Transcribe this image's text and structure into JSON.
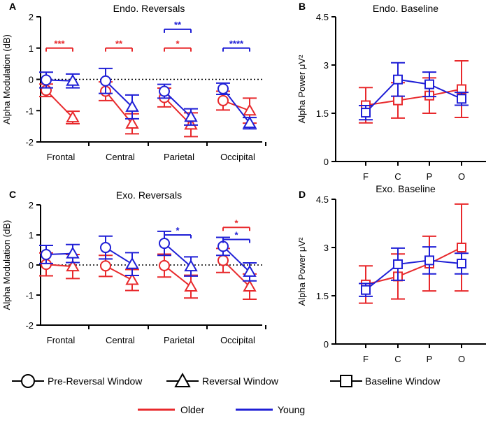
{
  "colors": {
    "older": "#e8292c",
    "young": "#1f1fd6"
  },
  "legend": {
    "markers": [
      {
        "label": "Pre-Reversal Window",
        "shape": "circle"
      },
      {
        "label": "Reversal Window",
        "shape": "triangle"
      },
      {
        "label": "Baseline Window",
        "shape": "square"
      }
    ],
    "groups": [
      {
        "label": "Older",
        "color": "older"
      },
      {
        "label": "Young",
        "color": "young"
      }
    ]
  },
  "chart_data": [
    {
      "id": "A",
      "type": "line",
      "title": "Endo. Reversals",
      "ylabel": "Alpha Modulation (dB)",
      "ylim": [
        -2,
        2
      ],
      "yticks": [
        "-2",
        "-1",
        "0",
        "1",
        "2"
      ],
      "categories": [
        "Frontal",
        "Central",
        "Parietal",
        "Occipital"
      ],
      "zero_line": true,
      "series": [
        {
          "name": "Older",
          "color": "older",
          "pre": [
            -0.35,
            -0.38,
            -0.58,
            -0.68
          ],
          "pre_err": [
            0.2,
            0.3,
            0.3,
            0.3
          ],
          "rev": [
            -1.22,
            -1.42,
            -1.45,
            -1.0
          ],
          "rev_err": [
            0.2,
            0.32,
            0.38,
            0.4
          ]
        },
        {
          "name": "Young",
          "color": "young",
          "pre": [
            -0.02,
            -0.05,
            -0.38,
            -0.3
          ],
          "pre_err": [
            0.25,
            0.4,
            0.22,
            0.18
          ],
          "rev": [
            -0.05,
            -0.88,
            -1.2,
            -1.4
          ],
          "rev_err": [
            0.22,
            0.38,
            0.26,
            0.18
          ]
        }
      ],
      "significance": [
        {
          "cat": 0,
          "group": "older",
          "label": "***",
          "level": 1.0
        },
        {
          "cat": 1,
          "group": "older",
          "label": "**",
          "level": 1.0
        },
        {
          "cat": 2,
          "group": "older",
          "label": "*",
          "level": 1.0
        },
        {
          "cat": 2,
          "group": "young",
          "label": "**",
          "level": 1.6
        },
        {
          "cat": 3,
          "group": "young",
          "label": "****",
          "level": 1.0
        }
      ]
    },
    {
      "id": "B",
      "type": "line",
      "title": "Endo. Baseline",
      "ylabel": "Alpha Power μV²",
      "ylim": [
        0,
        4.5
      ],
      "yticks": [
        "0",
        "1.5",
        "3",
        "4.5"
      ],
      "categories": [
        "F",
        "C",
        "P",
        "O"
      ],
      "series": [
        {
          "name": "Older",
          "color": "older",
          "values": [
            1.75,
            1.9,
            2.05,
            2.25
          ],
          "err": [
            0.55,
            0.55,
            0.55,
            0.88
          ]
        },
        {
          "name": "Young",
          "color": "young",
          "values": [
            1.52,
            2.55,
            2.4,
            1.95
          ],
          "err": [
            0.22,
            0.52,
            0.38,
            0.2
          ]
        }
      ]
    },
    {
      "id": "C",
      "type": "line",
      "title": "Exo. Reversals",
      "ylabel": "Alpha Modulation (dB)",
      "ylim": [
        -2,
        2
      ],
      "yticks": [
        "-2",
        "-1",
        "0",
        "1",
        "2"
      ],
      "categories": [
        "Frontal",
        "Central",
        "Parietal",
        "Occipital"
      ],
      "zero_line": true,
      "series": [
        {
          "name": "Older",
          "color": "older",
          "pre": [
            0.02,
            -0.03,
            -0.02,
            0.15
          ],
          "pre_err": [
            0.38,
            0.35,
            0.38,
            0.4
          ],
          "rev": [
            -0.05,
            -0.5,
            -0.72,
            -0.72
          ],
          "rev_err": [
            0.4,
            0.35,
            0.38,
            0.42
          ]
        },
        {
          "name": "Young",
          "color": "young",
          "pre": [
            0.35,
            0.58,
            0.72,
            0.62
          ],
          "pre_err": [
            0.3,
            0.38,
            0.4,
            0.3
          ],
          "rev": [
            0.38,
            0.03,
            -0.05,
            -0.23
          ],
          "rev_err": [
            0.3,
            0.38,
            0.32,
            0.3
          ]
        }
      ],
      "significance": [
        {
          "cat": 2,
          "group": "young",
          "label": "*",
          "level": 1.0
        },
        {
          "cat": 3,
          "group": "older",
          "label": "*",
          "level": 1.25
        },
        {
          "cat": 3,
          "group": "young",
          "label": "*",
          "level": 0.85
        }
      ]
    },
    {
      "id": "D",
      "type": "line",
      "title": "Exo. Baseline",
      "ylabel": "Alpha Power μV²",
      "ylim": [
        0,
        4.5
      ],
      "yticks": [
        "0",
        "1.5",
        "3",
        "4.5"
      ],
      "categories": [
        "F",
        "C",
        "P",
        "O"
      ],
      "series": [
        {
          "name": "Older",
          "color": "older",
          "values": [
            1.85,
            2.1,
            2.5,
            3.0
          ],
          "err": [
            0.58,
            0.7,
            0.85,
            1.35
          ]
        },
        {
          "name": "Young",
          "color": "young",
          "values": [
            1.68,
            2.48,
            2.6,
            2.5
          ],
          "err": [
            0.2,
            0.5,
            0.42,
            0.32
          ]
        }
      ]
    }
  ]
}
